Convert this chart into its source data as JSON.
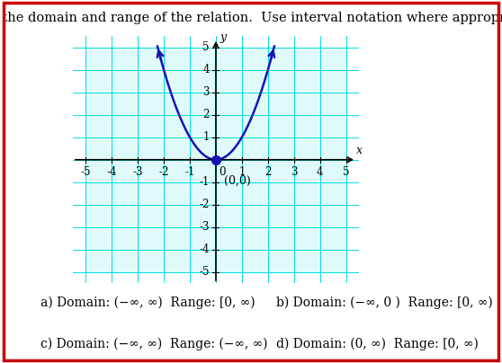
{
  "title": "Find the domain and range of the relation.  Use interval notation where appropriate.",
  "title_fontsize": 10.5,
  "curve_color": "#1414b4",
  "curve_linewidth": 1.8,
  "grid_color": "#00dede",
  "axis_color": "#000000",
  "background_color": "#ffffff",
  "xlim": [
    -5.5,
    5.5
  ],
  "ylim": [
    -5.5,
    5.5
  ],
  "dot_color": "#1414b4",
  "dot_size": 50,
  "label_00": "(0,0)",
  "label_00_fontsize": 9,
  "choices": [
    "a) Domain: (−∞, ∞)  Range: [0, ∞)",
    "b) Domain: (−∞, 0 )  Range: [0, ∞)",
    "c) Domain: (−∞, ∞)  Range: (−∞, ∞)",
    "d) Domain: (0, ∞)  Range: [0, ∞)"
  ],
  "choices_fontsize": 10,
  "border_color": "#cc0000",
  "border_linewidth": 2.5,
  "tick_fontsize": 8.5
}
